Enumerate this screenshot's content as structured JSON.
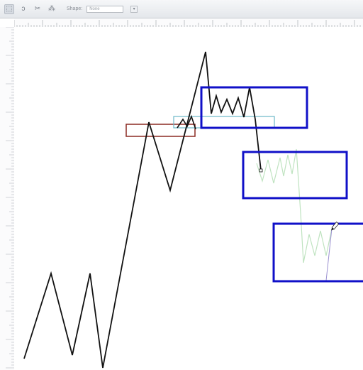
{
  "toolbar": {
    "shape_label": "Shape:",
    "shape_value": "None",
    "tools": [
      {
        "name": "marquee-tool-icon",
        "glyph": "⬚"
      },
      {
        "name": "lasso-tool-icon",
        "glyph": "ↄ"
      },
      {
        "name": "crop-tool-icon",
        "glyph": "✂"
      },
      {
        "name": "magic-wand-tool-icon",
        "glyph": "⁂"
      }
    ]
  },
  "colors": {
    "price_line": "#111111",
    "projection_line": "#bfe3c0",
    "red_box": "#8b2a22",
    "cyan_box": "#6cb8c8",
    "blue_box": "#1010c8",
    "pen_line": "#9a8fd0"
  }
}
